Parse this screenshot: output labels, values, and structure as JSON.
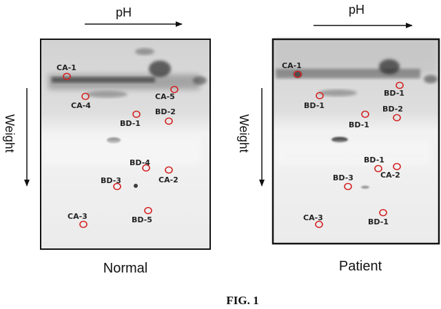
{
  "figure": {
    "caption": "FIG. 1",
    "spot_color": "#d42020"
  },
  "panels": [
    {
      "id": "normal",
      "label": "Normal",
      "axis_ph_label": "pH",
      "axis_weight_label": "Weight",
      "spots": [
        {
          "label": "CA-1"
        },
        {
          "label": "CA-4"
        },
        {
          "label": "CA-5"
        },
        {
          "label": "BD-2"
        },
        {
          "label": "BD-1"
        },
        {
          "label": "BD-4"
        },
        {
          "label": "BD-3"
        },
        {
          "label": "CA-2"
        },
        {
          "label": "CA-3"
        },
        {
          "label": "BD-5"
        }
      ]
    },
    {
      "id": "patient",
      "label": "Patient",
      "axis_ph_label": "pH",
      "axis_weight_label": "Weight",
      "spots": [
        {
          "label": "CA-1"
        },
        {
          "label": "BD-1"
        },
        {
          "label": "BD-1"
        },
        {
          "label": "BD-2"
        },
        {
          "label": "BD-1"
        },
        {
          "label": "BD-1"
        },
        {
          "label": "BD-3"
        },
        {
          "label": "CA-2"
        },
        {
          "label": "CA-3"
        },
        {
          "label": "BD-1"
        }
      ]
    }
  ]
}
